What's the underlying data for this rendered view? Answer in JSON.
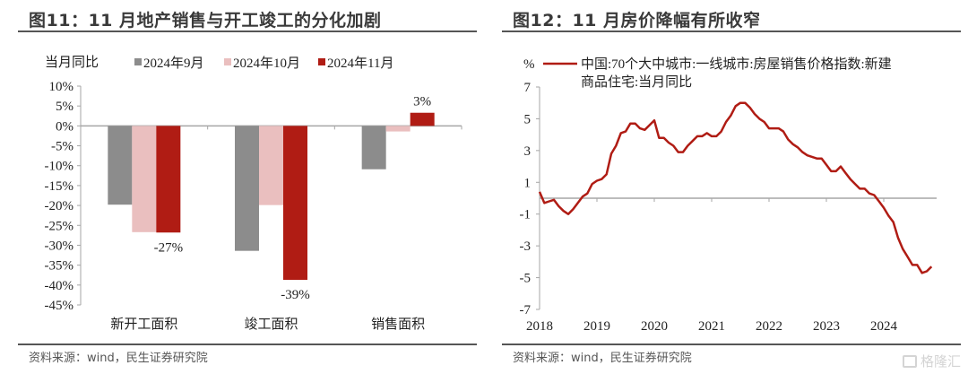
{
  "left": {
    "title": "图11：11 月地产销售与开工竣工的分化加剧",
    "source": "资料来源：wind，民生证券研究院"
  },
  "right": {
    "title": "图12：11 月房价降幅有所收窄",
    "source": "资料来源：wind，民生证券研究院"
  },
  "watermark": "格隆汇",
  "colors": {
    "gray": "#8c8c8c",
    "pink": "#eabfbf",
    "red": "#b01c14",
    "axis": "#a6a6a6"
  },
  "chart_data": [
    {
      "type": "bar",
      "title": "图11：11 月地产销售与开工竣工的分化加剧",
      "ylabel": "当月同比",
      "xlabel": "",
      "categories": [
        "新开工面积",
        "竣工面积",
        "销售面积"
      ],
      "series": [
        {
          "name": "2024年9月",
          "values": [
            -19.8,
            -31.4,
            -10.9
          ]
        },
        {
          "name": "2024年10月",
          "values": [
            -26.7,
            -19.9,
            -1.4
          ]
        },
        {
          "name": "2024年11月",
          "values": [
            -26.8,
            -38.7,
            3.3
          ]
        }
      ],
      "data_labels": [
        {
          "series": "2024年11月",
          "category": "新开工面积",
          "text": "-27%"
        },
        {
          "series": "2024年11月",
          "category": "竣工面积",
          "text": "-39%"
        },
        {
          "series": "2024年11月",
          "category": "销售面积",
          "text": "3%"
        }
      ],
      "yticks": [
        "10%",
        "5%",
        "0%",
        "-5%",
        "-10%",
        "-15%",
        "-20%",
        "-25%",
        "-30%",
        "-35%",
        "-40%",
        "-45%"
      ],
      "ylim": [
        -45,
        10
      ],
      "legend_position": "top",
      "grid": false
    },
    {
      "type": "line",
      "title": "图12：11 月房价降幅有所收窄",
      "ylabel": "%",
      "xlabel": "",
      "legend": [
        "中国:70个大中城市:一线城市:房屋销售价格指数:新建",
        "商品住宅:当月同比"
      ],
      "x_start": "2018-01",
      "x_end": "2024-11",
      "xticks": [
        "2018",
        "2019",
        "2020",
        "2021",
        "2022",
        "2023",
        "2024"
      ],
      "yticks": [
        "7",
        "5",
        "3",
        "1",
        "-1",
        "-3",
        "-5",
        "-7"
      ],
      "ylim": [
        -7,
        7
      ],
      "legend_position": "top",
      "grid": false,
      "series": [
        {
          "name": "中国:70个大中城市:一线城市:房屋销售价格指数:新建商品住宅:当月同比",
          "values": [
            0.4,
            -0.3,
            -0.2,
            -0.1,
            -0.5,
            -0.8,
            -1.0,
            -0.7,
            -0.3,
            0.1,
            0.3,
            0.9,
            1.1,
            1.2,
            1.5,
            2.8,
            3.3,
            4.1,
            4.2,
            4.7,
            4.7,
            4.4,
            4.3,
            4.6,
            4.9,
            3.8,
            3.8,
            3.5,
            3.3,
            2.9,
            2.9,
            3.3,
            3.6,
            3.9,
            3.9,
            4.1,
            3.9,
            3.9,
            4.2,
            4.8,
            5.2,
            5.8,
            6.0,
            6.0,
            5.7,
            5.3,
            5.0,
            4.8,
            4.4,
            4.4,
            4.4,
            4.2,
            3.7,
            3.4,
            3.2,
            2.9,
            2.7,
            2.6,
            2.5,
            2.5,
            2.1,
            1.7,
            1.7,
            2.0,
            1.6,
            1.2,
            0.9,
            0.6,
            0.6,
            0.3,
            0.2,
            -0.2,
            -0.6,
            -1.1,
            -1.5,
            -2.5,
            -3.2,
            -3.7,
            -4.2,
            -4.2,
            -4.7,
            -4.6,
            -4.3
          ]
        }
      ]
    }
  ]
}
